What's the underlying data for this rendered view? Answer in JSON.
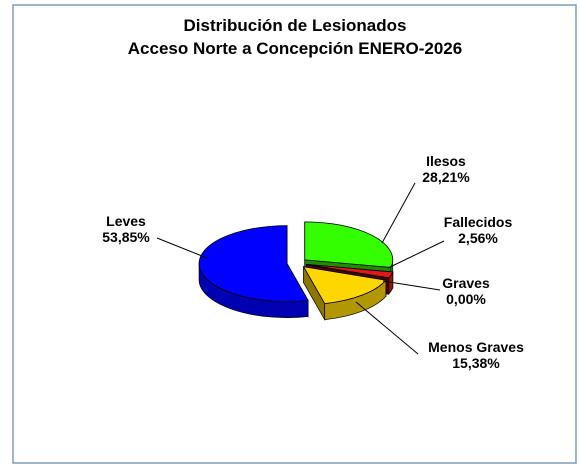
{
  "chart_data": {
    "type": "pie3d",
    "title": "Distribución de Lesionados",
    "subtitle": "Acceso Norte a Concepción ENERO-2026",
    "categories": [
      "Ilesos",
      "Fallecidos",
      "Graves",
      "Menos Graves",
      "Leves"
    ],
    "values": [
      28.21,
      2.56,
      0.0,
      15.38,
      53.85
    ],
    "value_labels": [
      "28,21%",
      "2,56%",
      "0,00%",
      "15,38%",
      "53,85%"
    ],
    "colors": [
      "#33ff00",
      "#e01818",
      "#990000",
      "#ffd700",
      "#0000ff"
    ]
  }
}
